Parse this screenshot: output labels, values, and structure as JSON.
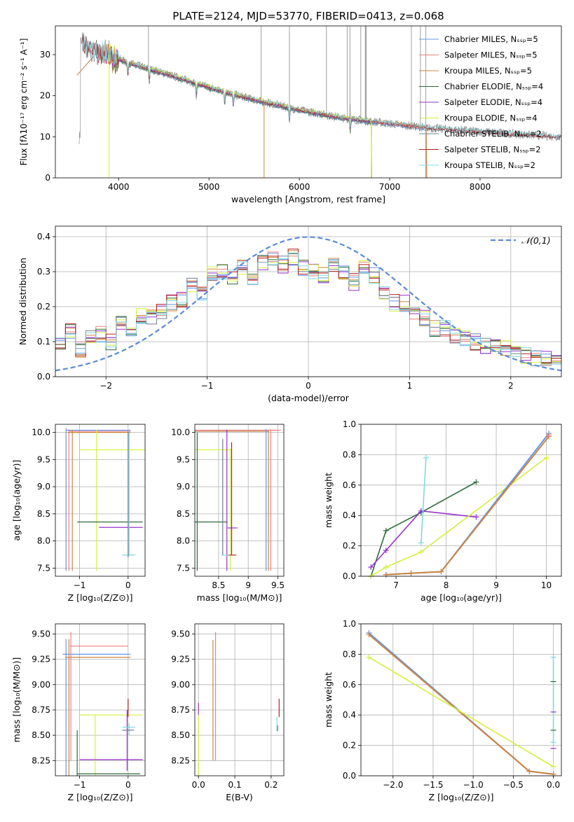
{
  "colors": {
    "Chabrier MILES": "#6495ed",
    "Salpeter MILES": "#f08080",
    "Kroupa MILES": "#cd853f",
    "Chabrier ELODIE": "#2e6b3a",
    "Salpeter ELODIE": "#9932cc",
    "Kroupa ELODIE": "#d4f03c",
    "Chabrier STELIB": "#708090",
    "Salpeter STELIB": "#b22222",
    "Kroupa STELIB": "#7fd8e0",
    "data": "#808080",
    "gauss": "#5b8bd6"
  },
  "chart_data": [
    {
      "id": "spectrum",
      "type": "line",
      "title": "PLATE=2124, MJD=53770, FIBERID=0413, z=0.068",
      "xlabel": "wavelength [Angstrom, rest frame]",
      "ylabel": "Flux [fλ10⁻¹⁷ erg cm⁻² s⁻¹ A⁻¹]",
      "xlim": [
        3300,
        8900
      ],
      "ylim": [
        0,
        37
      ],
      "xticks": [
        4000,
        5000,
        6000,
        7000,
        8000
      ],
      "yticks": [
        0,
        10,
        20,
        30
      ],
      "legend": [
        "Chabrier MILES, Nₛₛₚ=5",
        "Salpeter MILES, Nₛₛₚ=5",
        "Kroupa MILES, Nₛₛₚ=5",
        "Chabrier ELODIE, Nₛₛₚ=4",
        "Salpeter ELODIE, Nₛₛₚ=4",
        "Kroupa ELODIE, Nₛₛₚ=4",
        "Chabrier STELIB, Nₛₛₚ=2",
        "Salpeter STELIB, Nₛₛₚ=2",
        "Kroupa STELIB, Nₛₛₚ=2"
      ],
      "legend_position": "top-right",
      "continuum": [
        [
          3580,
          33
        ],
        [
          3700,
          31
        ],
        [
          3900,
          30
        ],
        [
          4100,
          28
        ],
        [
          4500,
          25.5
        ],
        [
          5000,
          22
        ],
        [
          5500,
          19
        ],
        [
          6000,
          16.5
        ],
        [
          6500,
          14.5
        ],
        [
          7000,
          13.2
        ],
        [
          7400,
          12.2
        ],
        [
          8000,
          11.3
        ],
        [
          8500,
          10.5
        ],
        [
          8900,
          10
        ]
      ]
    },
    {
      "id": "residuals",
      "type": "histogram",
      "xlabel": "(data-model)/error",
      "ylabel": "Normed distribution",
      "xlim": [
        -2.5,
        2.5
      ],
      "ylim": [
        0,
        0.43
      ],
      "xticks": [
        -2,
        -1,
        0,
        1,
        2
      ],
      "yticks": [
        0.0,
        0.1,
        0.2,
        0.3,
        0.4
      ],
      "legend": [
        "𝒩(0,1)"
      ],
      "legend_position": "top-right",
      "bins": [
        -2.5,
        -2.4,
        -2.3,
        -2.2,
        -2.1,
        -2.0,
        -1.9,
        -1.8,
        -1.7,
        -1.6,
        -1.5,
        -1.4,
        -1.3,
        -1.2,
        -1.1,
        -1.0,
        -0.9,
        -0.8,
        -0.7,
        -0.6,
        -0.5,
        -0.4,
        -0.3,
        -0.2,
        -0.1,
        0.0,
        0.1,
        0.2,
        0.3,
        0.4,
        0.5,
        0.6,
        0.7,
        0.8,
        0.9,
        1.0,
        1.1,
        1.2,
        1.3,
        1.4,
        1.5,
        1.6,
        1.7,
        1.8,
        1.9,
        2.0,
        2.1,
        2.2,
        2.3,
        2.4,
        2.5
      ],
      "base_heights": [
        0.09,
        0.13,
        0.08,
        0.12,
        0.12,
        0.1,
        0.15,
        0.13,
        0.17,
        0.17,
        0.19,
        0.21,
        0.22,
        0.26,
        0.24,
        0.29,
        0.3,
        0.28,
        0.31,
        0.28,
        0.33,
        0.34,
        0.32,
        0.34,
        0.31,
        0.3,
        0.29,
        0.32,
        0.3,
        0.27,
        0.31,
        0.29,
        0.24,
        0.21,
        0.21,
        0.18,
        0.17,
        0.14,
        0.14,
        0.12,
        0.11,
        0.1,
        0.09,
        0.09,
        0.08,
        0.08,
        0.06,
        0.05,
        0.05,
        0.04
      ]
    },
    {
      "id": "age-vs-Z",
      "type": "errorbar",
      "xlabel": "Z [log₁₀(Z/Z⊙)]",
      "ylabel": "age  [log₁₀(age/yr)]",
      "xlim": [
        -1.5,
        0.35
      ],
      "ylim": [
        7.35,
        10.15
      ],
      "xticks": [
        -1,
        0
      ],
      "yticks": [
        7.5,
        8.0,
        8.5,
        9.0,
        9.5,
        10.0
      ]
    },
    {
      "id": "age-vs-mass",
      "type": "errorbar",
      "xlabel": "mass [log₁₀(M/M⊙)]",
      "ylabel": "",
      "xlim": [
        8.1,
        9.6
      ],
      "ylim": [
        7.35,
        10.15
      ],
      "xticks": [
        8.5,
        9.0,
        9.5
      ],
      "yticks": [
        7.5,
        8.0,
        8.5,
        9.0,
        9.5,
        10.0
      ]
    },
    {
      "id": "massweight-vs-age",
      "type": "line",
      "xlabel": "age  [log₁₀(age/yr)]",
      "ylabel": "mass weight",
      "xlim": [
        6.3,
        10.3
      ],
      "ylim": [
        0,
        1
      ],
      "xticks": [
        7,
        8,
        9,
        10
      ],
      "yticks": [
        0.0,
        0.2,
        0.4,
        0.6,
        0.8,
        1.0
      ],
      "series": [
        {
          "name": "Chabrier ELODIE",
          "x": [
            6.5,
            6.8,
            7.5,
            8.6
          ],
          "y": [
            0.0,
            0.3,
            0.42,
            0.62
          ]
        },
        {
          "name": "Salpeter ELODIE",
          "x": [
            6.5,
            6.8,
            7.5,
            8.6
          ],
          "y": [
            0.06,
            0.17,
            0.43,
            0.39
          ]
        },
        {
          "name": "Kroupa ELODIE",
          "x": [
            6.5,
            6.8,
            7.5,
            10.0
          ],
          "y": [
            0.0,
            0.06,
            0.16,
            0.78
          ]
        },
        {
          "name": "Kroupa STELIB",
          "x": [
            7.5,
            7.6
          ],
          "y": [
            0.22,
            0.78
          ]
        },
        {
          "name": "Chabrier MILES",
          "x": [
            6.8,
            7.3,
            7.9,
            10.05
          ],
          "y": [
            0.01,
            0.02,
            0.03,
            0.94
          ]
        },
        {
          "name": "Kroupa MILES",
          "x": [
            6.8,
            7.3,
            7.9,
            10.05
          ],
          "y": [
            0.01,
            0.02,
            0.03,
            0.92
          ]
        },
        {
          "name": "Salpeter MILES",
          "x": [
            10.05
          ],
          "y": [
            0.93
          ]
        }
      ]
    },
    {
      "id": "mass-vs-Z",
      "type": "errorbar",
      "xlabel": "Z [log₁₀(Z/Z⊙)]",
      "ylabel": "mass [log₁₀(M/M⊙)]",
      "xlim": [
        -1.5,
        0.35
      ],
      "ylim": [
        8.1,
        9.6
      ],
      "xticks": [
        -1,
        0
      ],
      "yticks": [
        8.25,
        8.5,
        8.75,
        9.0,
        9.25,
        9.5
      ]
    },
    {
      "id": "mass-vs-EBV",
      "type": "errorbar",
      "xlabel": "E(B-V)",
      "ylabel": "",
      "xlim": [
        -0.01,
        0.235
      ],
      "ylim": [
        8.1,
        9.6
      ],
      "xticks": [
        0.0,
        0.1,
        0.2
      ],
      "yticks": [
        8.25,
        8.5,
        8.75,
        9.0,
        9.25,
        9.5
      ]
    },
    {
      "id": "massweight-vs-Z",
      "type": "line",
      "xlabel": "Z [log₁₀(Z/Z⊙)]",
      "ylabel": "mass weight",
      "xlim": [
        -2.4,
        0.1
      ],
      "ylim": [
        0,
        1
      ],
      "xticks": [
        -2.0,
        -1.5,
        -1.0,
        -0.5,
        0.0
      ],
      "yticks": [
        0.0,
        0.2,
        0.4,
        0.6,
        0.8,
        1.0
      ],
      "series": [
        {
          "name": "Chabrier MILES",
          "x": [
            -2.3,
            -0.3,
            0.0
          ],
          "y": [
            0.94,
            0.03,
            0.01
          ]
        },
        {
          "name": "Kroupa MILES",
          "x": [
            -2.3,
            -0.3,
            0.0
          ],
          "y": [
            0.93,
            0.03,
            0.01
          ]
        },
        {
          "name": "Kroupa ELODIE",
          "x": [
            -2.3,
            0.0
          ],
          "y": [
            0.78,
            0.06
          ]
        },
        {
          "name": "Kroupa STELIB",
          "x": [
            0.0,
            0.0
          ],
          "y": [
            0.22,
            0.78
          ]
        }
      ]
    }
  ]
}
